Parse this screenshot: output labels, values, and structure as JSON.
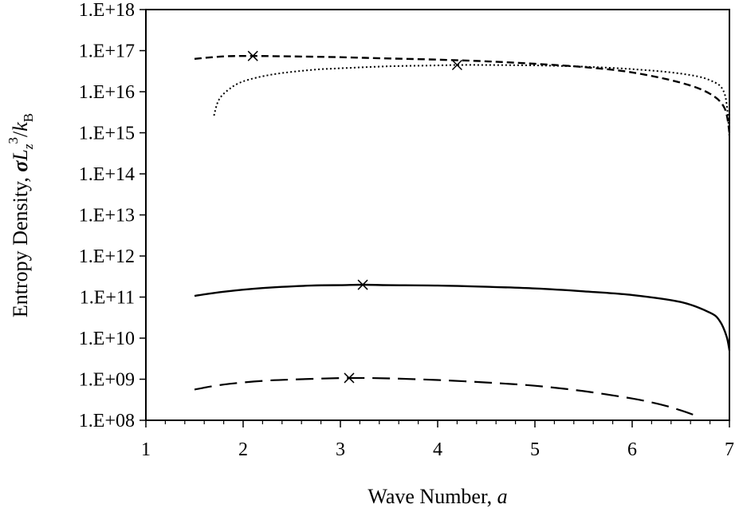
{
  "chart_data": {
    "type": "line",
    "title": "",
    "xlabel": "Wave Number, a",
    "xlabel_text": "Wave Number, ",
    "xlabel_var": "a",
    "ylabel": "Entropy Density, σL_z^3/k_B",
    "ylabel_text": "Entropy Density, ",
    "ylabel_sym": {
      "sigma": "σ",
      "L": "L",
      "z": "z",
      "exp": "3",
      "slash": "/",
      "k": "k",
      "B": "B"
    },
    "xlim": [
      1,
      7
    ],
    "ylim_log10": [
      8,
      18
    ],
    "x_ticks": [
      "1",
      "2",
      "3",
      "4",
      "5",
      "6",
      "7"
    ],
    "y_ticks": [
      "1.E+08",
      "1.E+09",
      "1.E+10",
      "1.E+11",
      "1.E+12",
      "1.E+13",
      "1.E+14",
      "1.E+15",
      "1.E+16",
      "1.E+17",
      "1.E+18"
    ],
    "grid": false,
    "series": [
      {
        "name": "short-dashed",
        "style": "short-dash",
        "x": [
          1.5,
          1.8,
          2.1,
          2.5,
          3.0,
          3.5,
          4.0,
          4.5,
          5.0,
          5.5,
          6.0,
          6.5,
          6.8,
          6.95,
          7.0
        ],
        "log10_y": [
          16.8,
          16.86,
          16.87,
          16.86,
          16.84,
          16.81,
          16.78,
          16.74,
          16.68,
          16.6,
          16.47,
          16.22,
          15.95,
          15.6,
          15.0
        ],
        "max_marker": {
          "x": 2.1,
          "log10_y": 16.87
        }
      },
      {
        "name": "dotted",
        "style": "dotted",
        "x": [
          1.7,
          1.75,
          1.85,
          2.0,
          2.3,
          2.7,
          3.0,
          3.5,
          4.0,
          4.2,
          4.5,
          5.0,
          5.5,
          6.0,
          6.5,
          6.8,
          6.95,
          7.0
        ],
        "log10_y": [
          15.42,
          15.8,
          16.05,
          16.25,
          16.42,
          16.53,
          16.57,
          16.62,
          16.64,
          16.65,
          16.65,
          16.64,
          16.61,
          16.55,
          16.44,
          16.28,
          15.95,
          14.9
        ],
        "max_marker": {
          "x": 4.2,
          "log10_y": 16.65
        }
      },
      {
        "name": "solid",
        "style": "solid",
        "x": [
          1.5,
          1.8,
          2.2,
          2.7,
          3.0,
          3.23,
          3.5,
          4.0,
          4.5,
          5.0,
          5.5,
          6.0,
          6.5,
          6.8,
          6.9,
          6.97,
          7.0
        ],
        "log10_y": [
          11.03,
          11.13,
          11.22,
          11.28,
          11.29,
          11.3,
          11.29,
          11.28,
          11.25,
          11.21,
          11.14,
          11.05,
          10.88,
          10.62,
          10.42,
          10.05,
          9.7
        ],
        "max_marker": {
          "x": 3.23,
          "log10_y": 11.3
        }
      },
      {
        "name": "long-dashed",
        "style": "long-dash",
        "x": [
          1.5,
          1.8,
          2.2,
          2.6,
          3.09,
          3.5,
          4.0,
          4.5,
          5.0,
          5.5,
          6.0,
          6.3,
          6.5,
          6.67
        ],
        "log10_y": [
          8.75,
          8.87,
          8.96,
          9.0,
          9.03,
          9.02,
          8.98,
          8.92,
          8.84,
          8.71,
          8.53,
          8.38,
          8.24,
          8.1
        ],
        "max_marker": {
          "x": 3.09,
          "log10_y": 9.03
        }
      }
    ]
  }
}
